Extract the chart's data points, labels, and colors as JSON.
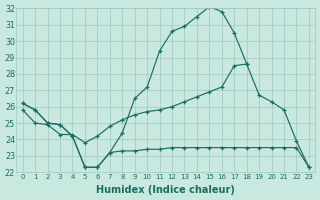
{
  "xlabel": "Humidex (Indice chaleur)",
  "background_color": "#c8e8e0",
  "grid_color": "#a0c8c0",
  "line_color": "#1a6e60",
  "xlim_min": -0.5,
  "xlim_max": 23.5,
  "ylim_min": 22,
  "ylim_max": 32,
  "yticks": [
    22,
    23,
    24,
    25,
    26,
    27,
    28,
    29,
    30,
    31,
    32
  ],
  "xticks": [
    0,
    1,
    2,
    3,
    4,
    5,
    6,
    7,
    8,
    9,
    10,
    11,
    12,
    13,
    14,
    15,
    16,
    17,
    18,
    19,
    20,
    21,
    22,
    23
  ],
  "hours": [
    0,
    1,
    2,
    3,
    4,
    5,
    6,
    7,
    8,
    9,
    10,
    11,
    12,
    13,
    14,
    15,
    16,
    17,
    18,
    19,
    20,
    21,
    22,
    23
  ],
  "line_max": [
    26.2,
    25.8,
    25.0,
    24.9,
    24.2,
    22.3,
    22.3,
    23.2,
    24.4,
    26.5,
    27.2,
    29.4,
    30.6,
    30.9,
    31.5,
    32.1,
    31.8,
    30.5,
    28.6,
    null,
    null,
    null,
    null,
    null
  ],
  "line_avg": [
    25.8,
    25.0,
    24.9,
    24.3,
    24.3,
    23.8,
    24.2,
    24.8,
    25.2,
    25.5,
    25.7,
    25.8,
    26.0,
    26.3,
    26.6,
    26.9,
    27.2,
    28.5,
    28.6,
    26.7,
    26.3,
    25.8,
    23.9,
    22.3
  ],
  "line_min": [
    26.2,
    25.8,
    25.0,
    24.9,
    24.2,
    22.3,
    22.3,
    23.2,
    23.3,
    23.3,
    23.4,
    23.4,
    23.5,
    23.5,
    23.5,
    23.5,
    23.5,
    23.5,
    23.5,
    23.5,
    23.5,
    23.5,
    23.5,
    22.3
  ]
}
